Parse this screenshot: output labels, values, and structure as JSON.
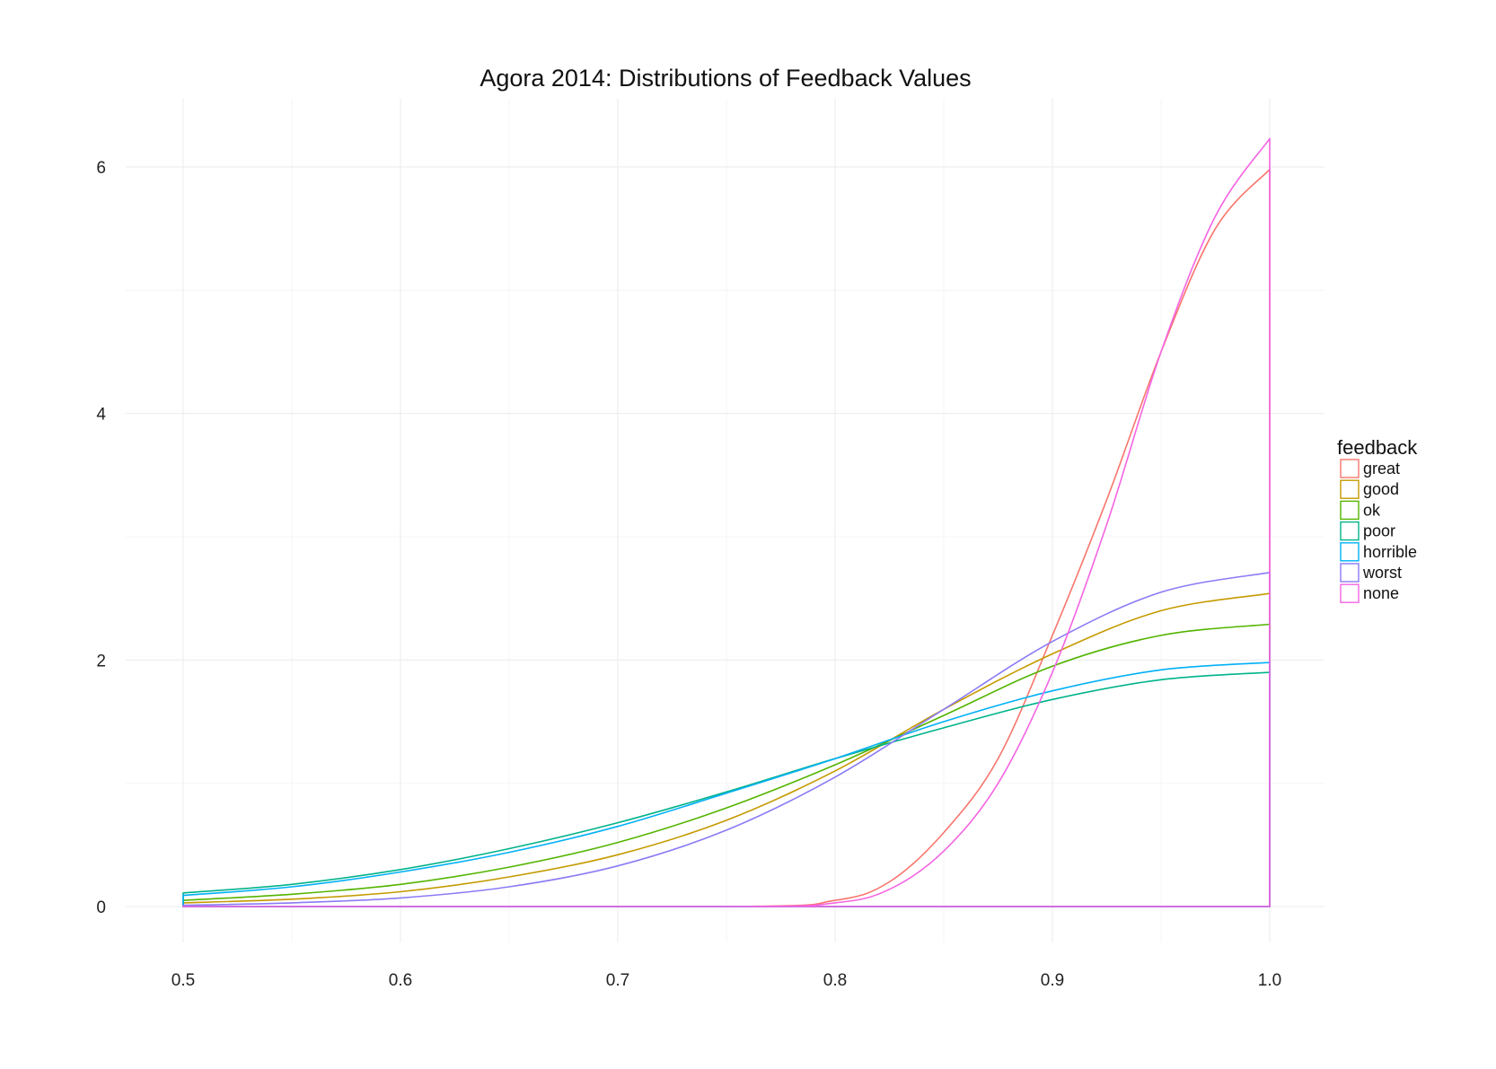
{
  "chart_data": {
    "type": "area",
    "title": "Agora 2014: Distributions of Feedback Values",
    "xlabel": "",
    "ylabel": "",
    "xlim": [
      0.5,
      1.0
    ],
    "ylim": [
      0,
      6.2
    ],
    "x_ticks": [
      0.5,
      0.6,
      0.7,
      0.8,
      0.9,
      1.0
    ],
    "x_tick_labels": [
      "0.5",
      "0.6",
      "0.7",
      "0.8",
      "0.9",
      "1.0"
    ],
    "y_ticks": [
      0,
      2,
      4,
      6
    ],
    "y_tick_labels": [
      "0",
      "2",
      "4",
      "6"
    ],
    "grid": true,
    "legend": {
      "title": "feedback",
      "position": "right"
    },
    "series": [
      {
        "name": "great",
        "color": "#F8766D",
        "x": [
          0.5,
          0.75,
          0.8,
          0.825,
          0.85,
          0.875,
          0.9,
          0.925,
          0.95,
          0.975,
          1.0
        ],
        "y": [
          0,
          0,
          0.05,
          0.2,
          0.6,
          1.2,
          2.2,
          3.3,
          4.5,
          5.5,
          5.98
        ]
      },
      {
        "name": "good",
        "color": "#C49A00",
        "x": [
          0.5,
          0.55,
          0.6,
          0.65,
          0.7,
          0.75,
          0.8,
          0.85,
          0.9,
          0.95,
          1.0
        ],
        "y": [
          0.03,
          0.06,
          0.12,
          0.24,
          0.42,
          0.7,
          1.1,
          1.6,
          2.05,
          2.4,
          2.54
        ]
      },
      {
        "name": "ok",
        "color": "#53B400",
        "x": [
          0.5,
          0.55,
          0.6,
          0.65,
          0.7,
          0.75,
          0.8,
          0.85,
          0.9,
          0.95,
          1.0
        ],
        "y": [
          0.05,
          0.1,
          0.18,
          0.32,
          0.52,
          0.8,
          1.15,
          1.55,
          1.95,
          2.2,
          2.29
        ]
      },
      {
        "name": "poor",
        "color": "#00B38A",
        "x": [
          0.5,
          0.55,
          0.6,
          0.65,
          0.7,
          0.75,
          0.8,
          0.85,
          0.9,
          0.95,
          1.0
        ],
        "y": [
          0.11,
          0.18,
          0.3,
          0.47,
          0.68,
          0.93,
          1.2,
          1.45,
          1.68,
          1.84,
          1.9
        ]
      },
      {
        "name": "horrible",
        "color": "#00B0F6",
        "x": [
          0.5,
          0.55,
          0.6,
          0.65,
          0.7,
          0.75,
          0.8,
          0.85,
          0.9,
          0.95,
          1.0
        ],
        "y": [
          0.09,
          0.16,
          0.28,
          0.44,
          0.65,
          0.92,
          1.2,
          1.5,
          1.75,
          1.92,
          1.98
        ]
      },
      {
        "name": "worst",
        "color": "#8A7BF5",
        "x": [
          0.5,
          0.55,
          0.6,
          0.65,
          0.7,
          0.75,
          0.8,
          0.85,
          0.9,
          0.95,
          1.0
        ],
        "y": [
          0.01,
          0.03,
          0.07,
          0.16,
          0.33,
          0.62,
          1.05,
          1.6,
          2.15,
          2.55,
          2.71
        ]
      },
      {
        "name": "none",
        "color": "#F564E3",
        "x": [
          0.5,
          0.75,
          0.8,
          0.825,
          0.85,
          0.875,
          0.9,
          0.925,
          0.95,
          0.975,
          1.0
        ],
        "y": [
          0,
          0,
          0.03,
          0.14,
          0.45,
          1.0,
          1.9,
          3.1,
          4.5,
          5.6,
          6.23
        ]
      }
    ]
  }
}
